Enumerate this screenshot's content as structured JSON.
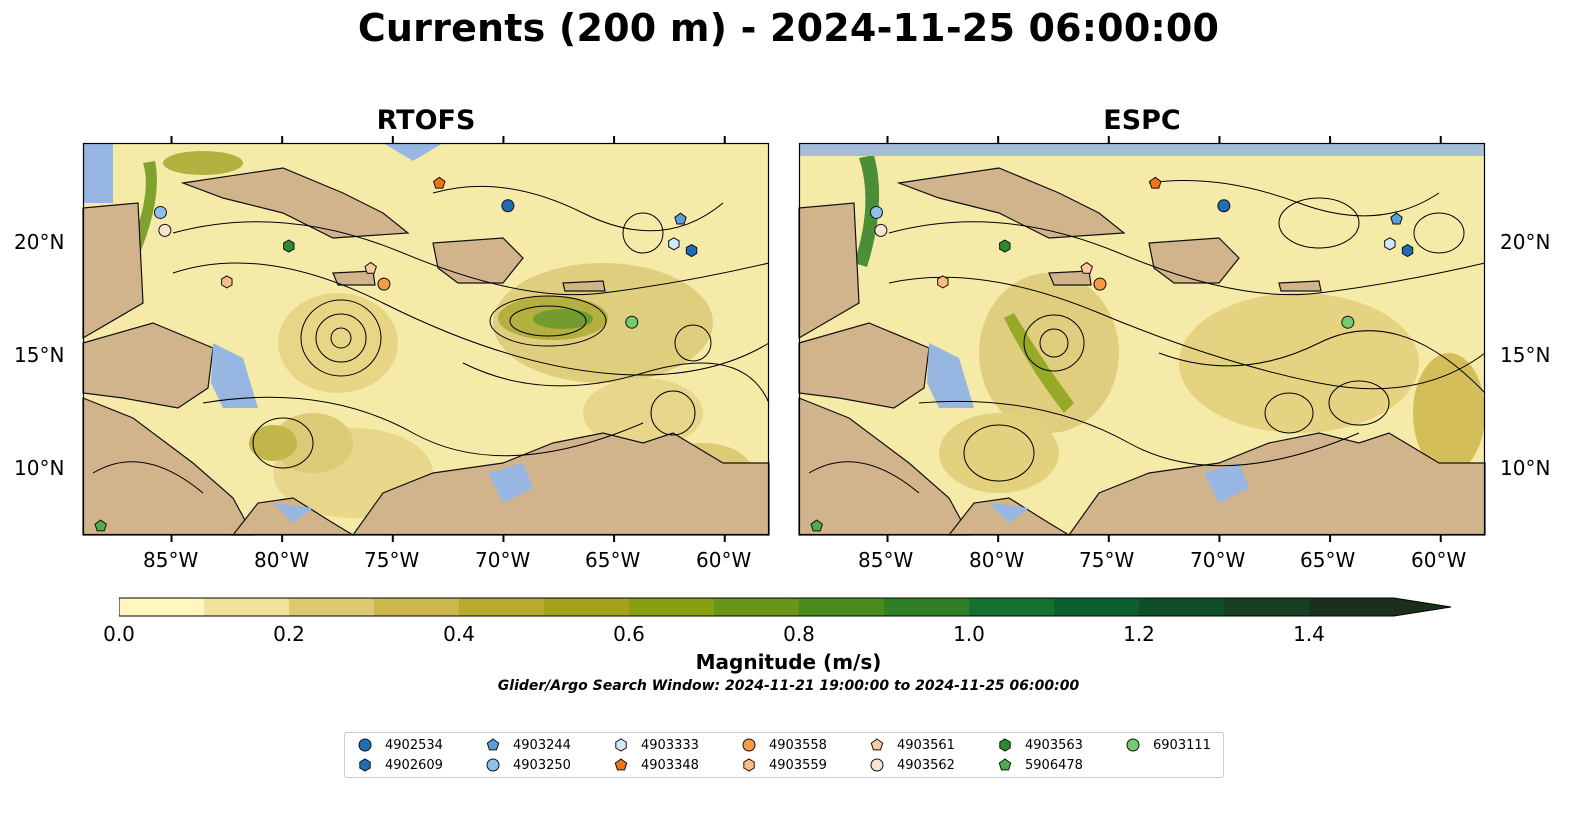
{
  "title": "Currents (200 m) - 2024-11-25 06:00:00",
  "panels": [
    {
      "title": "RTOFS"
    },
    {
      "title": "ESPC"
    }
  ],
  "lon_labels": [
    "85°W",
    "80°W",
    "75°W",
    "70°W",
    "65°W",
    "60°W"
  ],
  "lat_labels": [
    "20°N",
    "15°N",
    "10°N"
  ],
  "map_extent": {
    "lon": [
      -89.0,
      -58.0
    ],
    "lat": [
      7.0,
      24.5
    ]
  },
  "colorbar": {
    "label": "Magnitude (m/s)",
    "range": [
      0.0,
      1.5
    ],
    "step": 0.1,
    "extend": "max",
    "tick_labels": [
      "0.0",
      "0.2",
      "0.4",
      "0.6",
      "0.8",
      "1.0",
      "1.2",
      "1.4"
    ],
    "colors": [
      "#fff7bf",
      "#f0e29a",
      "#dcc870",
      "#cdb74c",
      "#b9aa2e",
      "#a3a21a",
      "#86a011",
      "#6a9618",
      "#4b8a1c",
      "#2f7f25",
      "#16702e",
      "#0c5f2e",
      "#0f4e28",
      "#173f22",
      "#1b301c"
    ]
  },
  "search_window": "Glider/Argo Search Window: 2024-11-21 19:00:00 to 2024-11-25 06:00:00",
  "colors": {
    "land": "#d2b48c",
    "shallow_water": "#97b6e1",
    "rivers": "#9db7d6"
  },
  "floats": [
    {
      "id": "4902534",
      "marker": "circle",
      "color": "#1f6eb4",
      "lon": -69.8,
      "lat": 21.7
    },
    {
      "id": "4902609",
      "marker": "hexagon",
      "color": "#1f6eb4",
      "lon": -61.5,
      "lat": 19.7
    },
    {
      "id": "4903244",
      "marker": "pentagon",
      "color": "#5b9fd9",
      "lon": -62.0,
      "lat": 21.1
    },
    {
      "id": "4903250",
      "marker": "circle",
      "color": "#8ec1ea",
      "lon": -85.5,
      "lat": 21.4
    },
    {
      "id": "4903333",
      "marker": "hexagon",
      "color": "#cfe8fa",
      "lon": -62.3,
      "lat": 20.0
    },
    {
      "id": "4903348",
      "marker": "pentagon",
      "color": "#ee7417",
      "lon": -72.9,
      "lat": 22.7
    },
    {
      "id": "4903558",
      "marker": "circle",
      "color": "#f59a45",
      "lon": -75.4,
      "lat": 18.2
    },
    {
      "id": "4903559",
      "marker": "hexagon",
      "color": "#f9bc84",
      "lon": -82.5,
      "lat": 18.3
    },
    {
      "id": "4903561",
      "marker": "pentagon",
      "color": "#fbcaa0",
      "lon": -76.0,
      "lat": 18.9
    },
    {
      "id": "4903562",
      "marker": "circle",
      "color": "#fde3cc",
      "lon": -85.3,
      "lat": 20.6
    },
    {
      "id": "4903563",
      "marker": "hexagon",
      "color": "#2d8a2d",
      "lon": -79.7,
      "lat": 19.9
    },
    {
      "id": "5906478",
      "marker": "pentagon",
      "color": "#52ac4e",
      "lon": -88.2,
      "lat": 7.4
    },
    {
      "id": "6903111",
      "marker": "circle",
      "color": "#72cb6c",
      "lon": -64.2,
      "lat": 16.5
    }
  ]
}
